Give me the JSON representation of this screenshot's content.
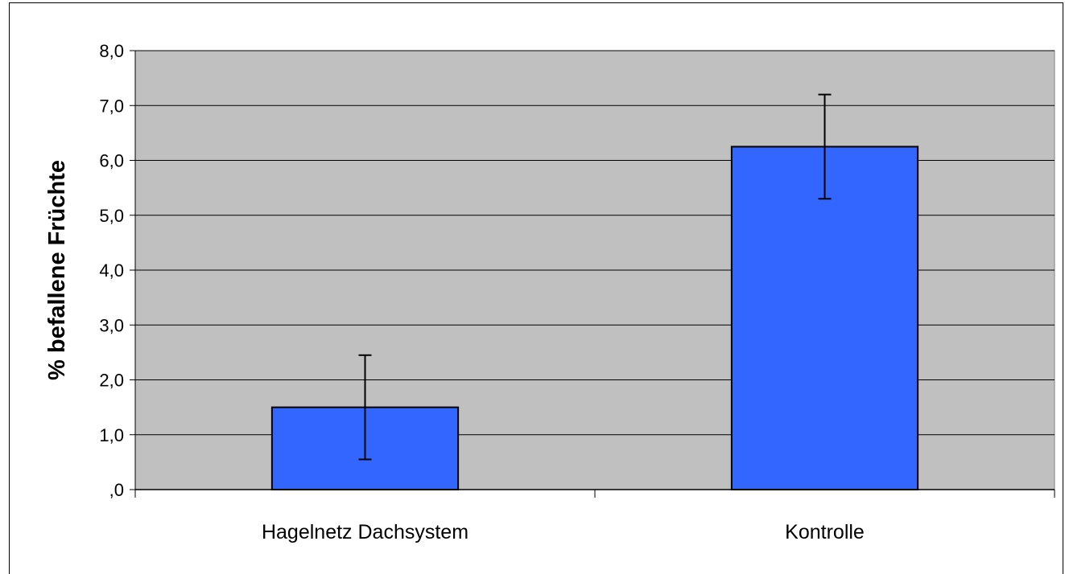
{
  "chart_data": {
    "type": "bar",
    "title": "",
    "xlabel": "",
    "ylabel": "% befallene Früchte",
    "categories": [
      "Hagelnetz Dachsystem",
      "Kontrolle"
    ],
    "values": [
      1.5,
      6.25
    ],
    "error": [
      0.95,
      0.95
    ],
    "ylim": [
      0,
      8
    ],
    "yticks": [
      0,
      1,
      2,
      3,
      4,
      5,
      6,
      7,
      8
    ],
    "ytick_labels": [
      ",0",
      "1,0",
      "2,0",
      "3,0",
      "4,0",
      "5,0",
      "6,0",
      "7,0",
      "8,0"
    ],
    "grid": true,
    "legend": "none",
    "colors": {
      "bar": "#3366FF",
      "plot_background": "#C0C0C0",
      "gridline": "#000000"
    }
  }
}
